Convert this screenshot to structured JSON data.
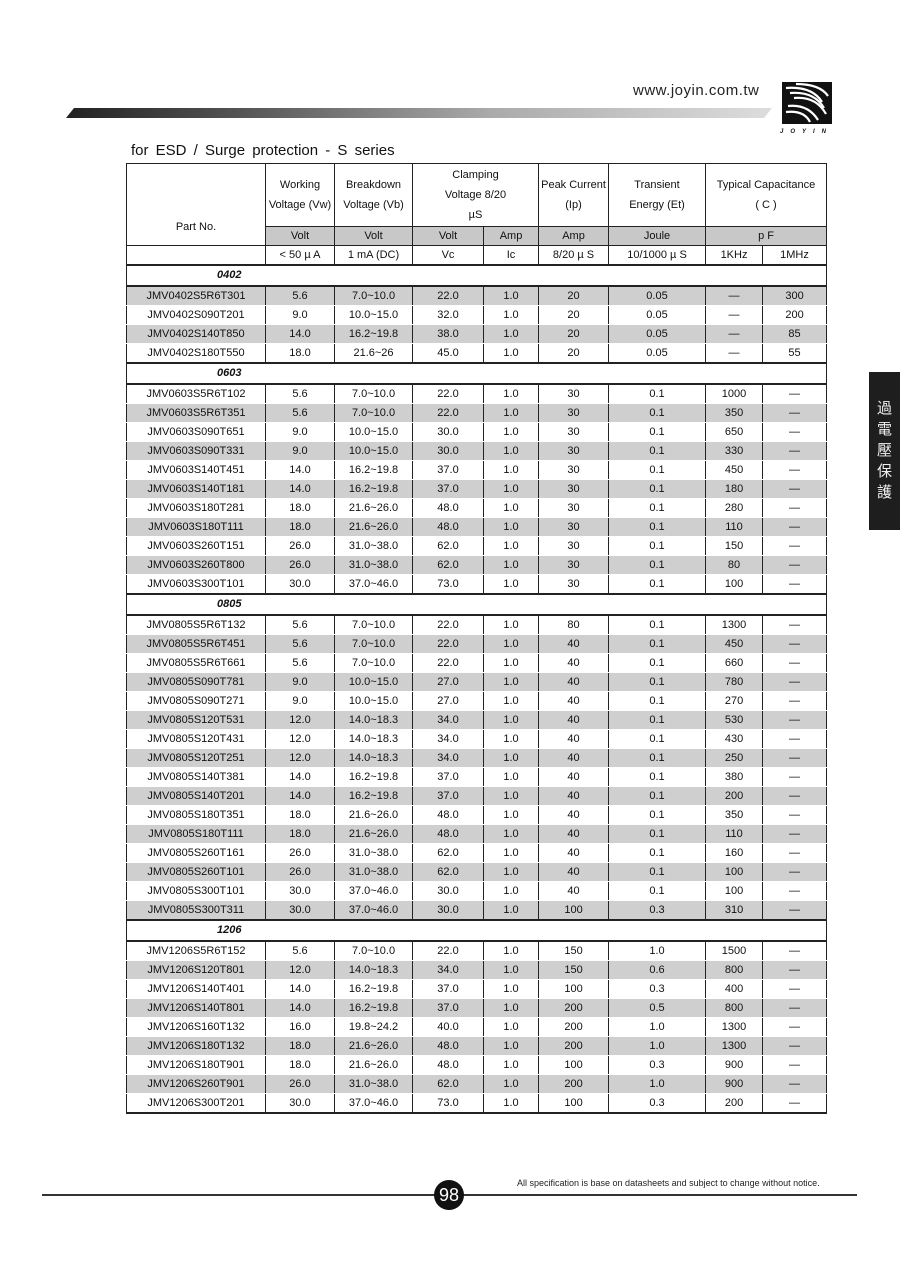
{
  "header": {
    "url": "www.joyin.com.tw",
    "logo_text": "JOYIN"
  },
  "title": "for ESD / Surge  protection - S series",
  "side_tab": "過電壓保護",
  "table": {
    "headers": {
      "part": "Part   No.",
      "working": "Working Voltage (Vw)",
      "breakdown": "Breakdown Voltage (Vb)",
      "clamping": "Clamping  Voltage 8/20 µS",
      "peak": "Peak Current (Ip)",
      "transient": "Transient Energy (Et)",
      "capacitance": "Typical Capacitance ( C )"
    },
    "units": [
      "Volt",
      "Volt",
      "Volt",
      "Amp",
      "Amp",
      "Joule",
      "p F"
    ],
    "conditions": [
      "< 50 µ A",
      "1 mA (DC)",
      "Vc",
      "Ic",
      "8/20 µ S",
      "10/1000  µ S",
      "1KHz",
      "1MHz"
    ],
    "groups": [
      {
        "name": "0402",
        "first_row_shaded": true,
        "rows": [
          [
            "JMV0402S5R6T301",
            "5.6",
            "7.0~10.0",
            "22.0",
            "1.0",
            "20",
            "0.05",
            "—",
            "300"
          ],
          [
            "JMV0402S090T201",
            "9.0",
            "10.0~15.0",
            "32.0",
            "1.0",
            "20",
            "0.05",
            "—",
            "200"
          ],
          [
            "JMV0402S140T850",
            "14.0",
            "16.2~19.8",
            "38.0",
            "1.0",
            "20",
            "0.05",
            "—",
            "85"
          ],
          [
            "JMV0402S180T550",
            "18.0",
            "21.6~26",
            "45.0",
            "1.0",
            "20",
            "0.05",
            "—",
            "55"
          ]
        ]
      },
      {
        "name": "0603",
        "first_row_shaded": false,
        "rows": [
          [
            "JMV0603S5R6T102",
            "5.6",
            "7.0~10.0",
            "22.0",
            "1.0",
            "30",
            "0.1",
            "1000",
            "—"
          ],
          [
            "JMV0603S5R6T351",
            "5.6",
            "7.0~10.0",
            "22.0",
            "1.0",
            "30",
            "0.1",
            "350",
            "—"
          ],
          [
            "JMV0603S090T651",
            "9.0",
            "10.0~15.0",
            "30.0",
            "1.0",
            "30",
            "0.1",
            "650",
            "—"
          ],
          [
            "JMV0603S090T331",
            "9.0",
            "10.0~15.0",
            "30.0",
            "1.0",
            "30",
            "0.1",
            "330",
            "—"
          ],
          [
            "JMV0603S140T451",
            "14.0",
            "16.2~19.8",
            "37.0",
            "1.0",
            "30",
            "0.1",
            "450",
            "—"
          ],
          [
            "JMV0603S140T181",
            "14.0",
            "16.2~19.8",
            "37.0",
            "1.0",
            "30",
            "0.1",
            "180",
            "—"
          ],
          [
            "JMV0603S180T281",
            "18.0",
            "21.6~26.0",
            "48.0",
            "1.0",
            "30",
            "0.1",
            "280",
            "—"
          ],
          [
            "JMV0603S180T111",
            "18.0",
            "21.6~26.0",
            "48.0",
            "1.0",
            "30",
            "0.1",
            "110",
            "—"
          ],
          [
            "JMV0603S260T151",
            "26.0",
            "31.0~38.0",
            "62.0",
            "1.0",
            "30",
            "0.1",
            "150",
            "—"
          ],
          [
            "JMV0603S260T800",
            "26.0",
            "31.0~38.0",
            "62.0",
            "1.0",
            "30",
            "0.1",
            "80",
            "—"
          ],
          [
            "JMV0603S300T101",
            "30.0",
            "37.0~46.0",
            "73.0",
            "1.0",
            "30",
            "0.1",
            "100",
            "—"
          ]
        ]
      },
      {
        "name": "0805",
        "first_row_shaded": false,
        "rows": [
          [
            "JMV0805S5R6T132",
            "5.6",
            "7.0~10.0",
            "22.0",
            "1.0",
            "80",
            "0.1",
            "1300",
            "—"
          ],
          [
            "JMV0805S5R6T451",
            "5.6",
            "7.0~10.0",
            "22.0",
            "1.0",
            "40",
            "0.1",
            "450",
            "—"
          ],
          [
            "JMV0805S5R6T661",
            "5.6",
            "7.0~10.0",
            "22.0",
            "1.0",
            "40",
            "0.1",
            "660",
            "—"
          ],
          [
            "JMV0805S090T781",
            "9.0",
            "10.0~15.0",
            "27.0",
            "1.0",
            "40",
            "0.1",
            "780",
            "—"
          ],
          [
            "JMV0805S090T271",
            "9.0",
            "10.0~15.0",
            "27.0",
            "1.0",
            "40",
            "0.1",
            "270",
            "—"
          ],
          [
            "JMV0805S120T531",
            "12.0",
            "14.0~18.3",
            "34.0",
            "1.0",
            "40",
            "0.1",
            "530",
            "—"
          ],
          [
            "JMV0805S120T431",
            "12.0",
            "14.0~18.3",
            "34.0",
            "1.0",
            "40",
            "0.1",
            "430",
            "—"
          ],
          [
            "JMV0805S120T251",
            "12.0",
            "14.0~18.3",
            "34.0",
            "1.0",
            "40",
            "0.1",
            "250",
            "—"
          ],
          [
            "JMV0805S140T381",
            "14.0",
            "16.2~19.8",
            "37.0",
            "1.0",
            "40",
            "0.1",
            "380",
            "—"
          ],
          [
            "JMV0805S140T201",
            "14.0",
            "16.2~19.8",
            "37.0",
            "1.0",
            "40",
            "0.1",
            "200",
            "—"
          ],
          [
            "JMV0805S180T351",
            "18.0",
            "21.6~26.0",
            "48.0",
            "1.0",
            "40",
            "0.1",
            "350",
            "—"
          ],
          [
            "JMV0805S180T111",
            "18.0",
            "21.6~26.0",
            "48.0",
            "1.0",
            "40",
            "0.1",
            "110",
            "—"
          ],
          [
            "JMV0805S260T161",
            "26.0",
            "31.0~38.0",
            "62.0",
            "1.0",
            "40",
            "0.1",
            "160",
            "—"
          ],
          [
            "JMV0805S260T101",
            "26.0",
            "31.0~38.0",
            "62.0",
            "1.0",
            "40",
            "0.1",
            "100",
            "—"
          ],
          [
            "JMV0805S300T101",
            "30.0",
            "37.0~46.0",
            "30.0",
            "1.0",
            "40",
            "0.1",
            "100",
            "—"
          ],
          [
            "JMV0805S300T311",
            "30.0",
            "37.0~46.0",
            "30.0",
            "1.0",
            "100",
            "0.3",
            "310",
            "—"
          ]
        ]
      },
      {
        "name": "1206",
        "first_row_shaded": false,
        "rows": [
          [
            "JMV1206S5R6T152",
            "5.6",
            "7.0~10.0",
            "22.0",
            "1.0",
            "150",
            "1.0",
            "1500",
            "—"
          ],
          [
            "JMV1206S120T801",
            "12.0",
            "14.0~18.3",
            "34.0",
            "1.0",
            "150",
            "0.6",
            "800",
            "—"
          ],
          [
            "JMV1206S140T401",
            "14.0",
            "16.2~19.8",
            "37.0",
            "1.0",
            "100",
            "0.3",
            "400",
            "—"
          ],
          [
            "JMV1206S140T801",
            "14.0",
            "16.2~19.8",
            "37.0",
            "1.0",
            "200",
            "0.5",
            "800",
            "—"
          ],
          [
            "JMV1206S160T132",
            "16.0",
            "19.8~24.2",
            "40.0",
            "1.0",
            "200",
            "1.0",
            "1300",
            "—"
          ],
          [
            "JMV1206S180T132",
            "18.0",
            "21.6~26.0",
            "48.0",
            "1.0",
            "200",
            "1.0",
            "1300",
            "—"
          ],
          [
            "JMV1206S180T901",
            "18.0",
            "21.6~26.0",
            "48.0",
            "1.0",
            "100",
            "0.3",
            "900",
            "—"
          ],
          [
            "JMV1206S260T901",
            "26.0",
            "31.0~38.0",
            "62.0",
            "1.0",
            "200",
            "1.0",
            "900",
            "—"
          ],
          [
            "JMV1206S300T201",
            "30.0",
            "37.0~46.0",
            "73.0",
            "1.0",
            "100",
            "0.3",
            "200",
            "—"
          ]
        ]
      }
    ]
  },
  "footer": {
    "page": "98",
    "note": "All specification is base on datasheets and subject to change without notice."
  }
}
